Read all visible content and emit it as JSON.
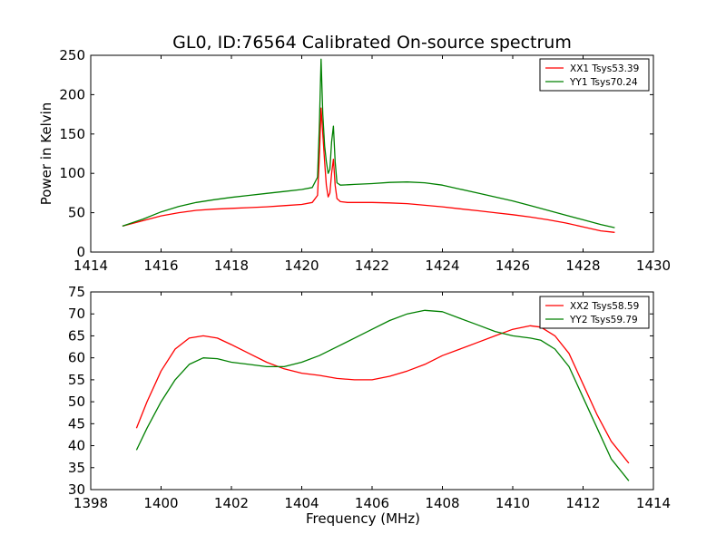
{
  "figure_title": "GL0, ID:76564 Calibrated On-source spectrum",
  "chart_data": [
    {
      "type": "line",
      "title": "GL0, ID:76564 Calibrated On-source spectrum",
      "xlabel": "",
      "ylabel": "Power in Kelvin",
      "xlim": [
        1414,
        1430
      ],
      "ylim": [
        0,
        250
      ],
      "xticks": [
        1414,
        1416,
        1418,
        1420,
        1422,
        1424,
        1426,
        1428,
        1430
      ],
      "yticks": [
        0,
        50,
        100,
        150,
        200,
        250
      ],
      "grid": false,
      "legend_position": "top-right",
      "series": [
        {
          "name": "XX1 Tsys53.39",
          "color": "#ff0000",
          "x": [
            1414.9,
            1415.5,
            1416.0,
            1416.5,
            1417.0,
            1417.5,
            1418.0,
            1418.5,
            1419.0,
            1419.5,
            1420.0,
            1420.3,
            1420.45,
            1420.5,
            1420.55,
            1420.6,
            1420.65,
            1420.7,
            1420.75,
            1420.8,
            1420.85,
            1420.9,
            1420.95,
            1421.0,
            1421.1,
            1421.3,
            1421.5,
            1422.0,
            1422.5,
            1423.0,
            1423.5,
            1424.0,
            1424.5,
            1425.0,
            1425.5,
            1426.0,
            1426.5,
            1427.0,
            1427.5,
            1428.0,
            1428.5,
            1428.9
          ],
          "y": [
            33,
            40,
            46,
            50,
            53,
            54.5,
            55.5,
            56.5,
            57.5,
            59,
            60.5,
            63,
            72,
            120,
            183,
            150,
            115,
            85,
            70,
            75,
            100,
            118,
            85,
            68,
            64,
            63,
            63,
            63,
            62.5,
            61.5,
            59.5,
            57.5,
            55,
            52.5,
            50,
            47.5,
            44.5,
            41,
            37,
            32,
            27,
            25
          ]
        },
        {
          "name": "YY1 Tsys70.24",
          "color": "#008000",
          "x": [
            1414.9,
            1415.5,
            1416.0,
            1416.5,
            1417.0,
            1417.5,
            1418.0,
            1418.5,
            1419.0,
            1419.5,
            1420.0,
            1420.3,
            1420.45,
            1420.5,
            1420.55,
            1420.6,
            1420.65,
            1420.7,
            1420.75,
            1420.8,
            1420.85,
            1420.9,
            1420.95,
            1421.0,
            1421.1,
            1421.3,
            1421.5,
            1422.0,
            1422.5,
            1423.0,
            1423.5,
            1424.0,
            1424.5,
            1425.0,
            1425.5,
            1426.0,
            1426.5,
            1427.0,
            1427.5,
            1428.0,
            1428.5,
            1428.9
          ],
          "y": [
            33,
            42,
            51,
            58,
            63,
            66.5,
            69.5,
            72,
            74.5,
            77,
            79.5,
            82,
            95,
            160,
            245,
            175,
            135,
            115,
            100,
            105,
            140,
            160,
            115,
            88,
            85,
            85.5,
            86,
            87,
            88.5,
            89,
            88,
            85,
            80,
            75,
            70,
            65,
            59,
            53,
            47,
            41,
            35,
            31
          ]
        }
      ]
    },
    {
      "type": "line",
      "title": "",
      "xlabel": "Frequency (MHz)",
      "ylabel": "",
      "xlim": [
        1398,
        1414
      ],
      "ylim": [
        30,
        75
      ],
      "xticks": [
        1398,
        1400,
        1402,
        1404,
        1406,
        1408,
        1410,
        1412,
        1414
      ],
      "yticks": [
        30,
        35,
        40,
        45,
        50,
        55,
        60,
        65,
        70,
        75
      ],
      "grid": false,
      "legend_position": "top-right",
      "series": [
        {
          "name": "XX2 Tsys58.59",
          "color": "#ff0000",
          "x": [
            1399.3,
            1399.6,
            1400.0,
            1400.4,
            1400.8,
            1401.2,
            1401.6,
            1402.0,
            1402.5,
            1403.0,
            1403.5,
            1404.0,
            1404.5,
            1405.0,
            1405.5,
            1406.0,
            1406.5,
            1407.0,
            1407.5,
            1408.0,
            1408.5,
            1409.0,
            1409.5,
            1410.0,
            1410.5,
            1410.8,
            1411.2,
            1411.6,
            1412.0,
            1412.4,
            1412.8,
            1413.3
          ],
          "y": [
            44,
            50,
            57,
            62,
            64.5,
            65,
            64.5,
            63,
            61,
            59,
            57.5,
            56.5,
            56,
            55.3,
            55,
            55,
            55.8,
            57,
            58.5,
            60.5,
            62,
            63.5,
            65,
            66.5,
            67.3,
            67,
            65,
            61,
            54,
            47,
            41,
            36
          ]
        },
        {
          "name": "YY2 Tsys59.79",
          "color": "#008000",
          "x": [
            1399.3,
            1399.6,
            1400.0,
            1400.4,
            1400.8,
            1401.2,
            1401.6,
            1402.0,
            1402.5,
            1403.0,
            1403.5,
            1404.0,
            1404.5,
            1405.0,
            1405.5,
            1406.0,
            1406.5,
            1407.0,
            1407.5,
            1408.0,
            1408.5,
            1409.0,
            1409.5,
            1410.0,
            1410.5,
            1410.8,
            1411.2,
            1411.6,
            1412.0,
            1412.4,
            1412.8,
            1413.3
          ],
          "y": [
            39,
            44,
            50,
            55,
            58.5,
            60,
            59.8,
            59,
            58.5,
            58,
            58,
            59,
            60.5,
            62.5,
            64.5,
            66.5,
            68.5,
            70,
            70.8,
            70.5,
            69,
            67.5,
            66,
            65,
            64.5,
            64,
            62,
            58,
            51,
            44,
            37,
            32
          ]
        }
      ]
    }
  ]
}
